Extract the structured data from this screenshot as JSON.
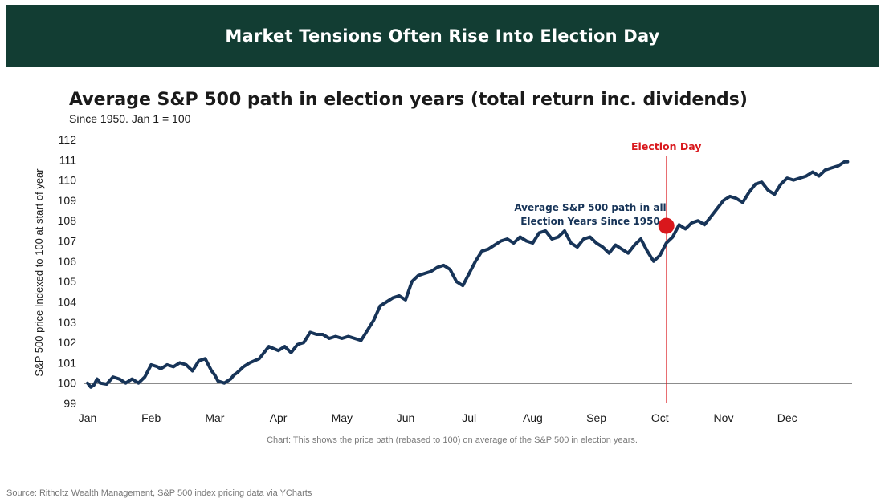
{
  "header": {
    "title": "Market Tensions Often Rise Into Election Day"
  },
  "source": "Source: Ritholtz Wealth Management, S&P 500 index pricing data via YCharts",
  "colors": {
    "banner": "#123d33",
    "line": "#173458",
    "election": "#d9171c",
    "baseline": "#1a1a1a"
  },
  "chart_data": {
    "type": "line",
    "title": "Average S&P 500 path in election years (total return inc. dividends)",
    "subtitle": "Since 1950. Jan 1 = 100",
    "ylabel": "S&P 500 price Indexed to 100 at start of year",
    "xlabel": "",
    "caption": "Chart: This shows the price path  (rebased to 100) on average of the S&P 500 in election years.",
    "ylim": [
      99,
      112
    ],
    "yticks": [
      99,
      100,
      101,
      102,
      103,
      104,
      105,
      106,
      107,
      108,
      109,
      110,
      111,
      112
    ],
    "xlim": [
      0,
      11.95
    ],
    "month_ticks": [
      "Jan",
      "Feb",
      "Mar",
      "Apr",
      "May",
      "Jun",
      "Jul",
      "Aug",
      "Sep",
      "Oct",
      "Nov",
      "Dec"
    ],
    "grid": false,
    "baseline": 100,
    "series": [
      {
        "name": "Average S&P 500 path in all Election Years Since 1950",
        "label_lines": [
          "Average S&P 500 path in all",
          "Election Years Since 1950"
        ],
        "x": [
          0,
          0.05,
          0.1,
          0.15,
          0.2,
          0.3,
          0.4,
          0.5,
          0.6,
          0.7,
          0.8,
          0.9,
          1.0,
          1.1,
          1.15,
          1.25,
          1.35,
          1.45,
          1.55,
          1.65,
          1.75,
          1.85,
          1.95,
          2.0,
          2.05,
          2.15,
          2.25,
          2.3,
          2.35,
          2.45,
          2.55,
          2.7,
          2.85,
          3.0,
          3.1,
          3.2,
          3.3,
          3.4,
          3.5,
          3.6,
          3.7,
          3.8,
          3.9,
          4.0,
          4.1,
          4.2,
          4.3,
          4.4,
          4.5,
          4.6,
          4.7,
          4.8,
          4.9,
          5.0,
          5.1,
          5.2,
          5.3,
          5.4,
          5.5,
          5.6,
          5.7,
          5.8,
          5.9,
          6.0,
          6.1,
          6.2,
          6.3,
          6.4,
          6.5,
          6.6,
          6.7,
          6.8,
          6.9,
          7.0,
          7.1,
          7.2,
          7.3,
          7.4,
          7.5,
          7.6,
          7.7,
          7.8,
          7.9,
          8.0,
          8.1,
          8.2,
          8.3,
          8.4,
          8.5,
          8.6,
          8.7,
          8.8,
          8.9,
          9.0,
          9.1,
          9.2,
          9.3,
          9.4,
          9.5,
          9.6,
          9.7,
          9.8,
          9.9,
          10.0,
          10.1,
          10.2,
          10.3,
          10.4,
          10.5,
          10.6,
          10.7,
          10.8,
          10.9,
          11.0,
          11.1,
          11.2,
          11.3,
          11.4,
          11.5,
          11.6,
          11.7,
          11.8,
          11.9,
          11.95
        ],
        "y": [
          100.0,
          99.8,
          99.9,
          100.2,
          100.0,
          99.95,
          100.3,
          100.2,
          100.0,
          100.2,
          100.0,
          100.3,
          100.9,
          100.8,
          100.7,
          100.9,
          100.8,
          101.0,
          100.9,
          100.6,
          101.1,
          101.2,
          100.6,
          100.4,
          100.1,
          100.0,
          100.2,
          100.4,
          100.5,
          100.8,
          101.0,
          101.2,
          101.8,
          101.6,
          101.8,
          101.5,
          101.9,
          102.0,
          102.5,
          102.4,
          102.4,
          102.2,
          102.3,
          102.2,
          102.3,
          102.2,
          102.1,
          102.6,
          103.1,
          103.8,
          104.0,
          104.2,
          104.3,
          104.1,
          105.0,
          105.3,
          105.4,
          105.5,
          105.7,
          105.8,
          105.6,
          105.0,
          104.8,
          105.4,
          106.0,
          106.5,
          106.6,
          106.8,
          107.0,
          107.1,
          106.9,
          107.2,
          107.0,
          106.9,
          107.4,
          107.5,
          107.1,
          107.2,
          107.5,
          106.9,
          106.7,
          107.1,
          107.2,
          106.9,
          106.7,
          106.4,
          106.8,
          106.6,
          106.4,
          106.8,
          107.1,
          106.5,
          106.0,
          106.3,
          106.9,
          107.2,
          107.8,
          107.6,
          107.9,
          108.0,
          107.8,
          108.2,
          108.6,
          109.0,
          109.2,
          109.1,
          108.9,
          109.4,
          109.8,
          109.9,
          109.5,
          109.3,
          109.8,
          110.1,
          110.0,
          110.1,
          110.2,
          110.4,
          110.2,
          110.5,
          110.6,
          110.7,
          110.9,
          110.9
        ]
      }
    ],
    "event": {
      "label": "Election Day",
      "x": 9.1,
      "y": 107.75
    }
  }
}
